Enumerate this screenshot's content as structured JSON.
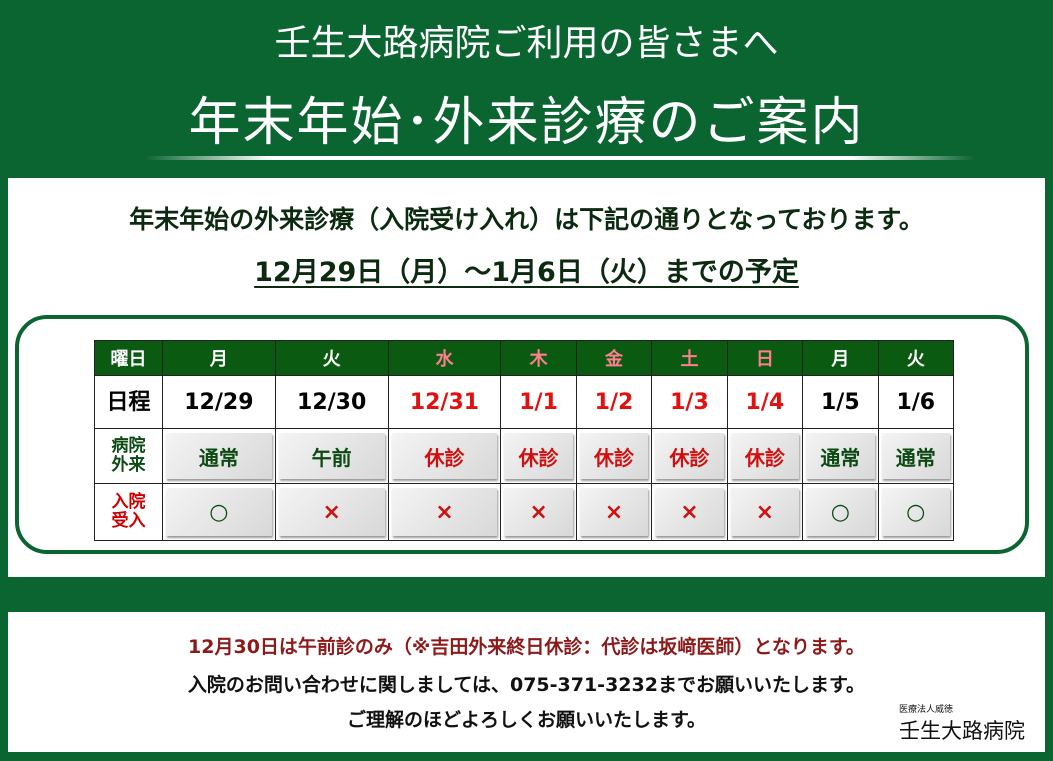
{
  "header": {
    "subtitle": "壬生大路病院ご利用の皆さまへ",
    "title": "年末年始･外来診療のご案内"
  },
  "intro": {
    "line1": "年末年始の外来診療（入院受け入れ）は下記の通りとなっております。",
    "line2": "12月29日（月）～1月6日（火）までの予定"
  },
  "table": {
    "row_labels": {
      "weekday": "曜日",
      "date": "日程",
      "outpatient": "病院外来",
      "admission": "入院受入"
    },
    "columns": [
      {
        "weekday": "月",
        "date": "12/29",
        "outpatient": "通常",
        "admission": "○",
        "holiday": false
      },
      {
        "weekday": "火",
        "date": "12/30",
        "outpatient": "午前",
        "admission": "×",
        "holiday": false
      },
      {
        "weekday": "水",
        "date": "12/31",
        "outpatient": "休診",
        "admission": "×",
        "holiday": true
      },
      {
        "weekday": "木",
        "date": "1/1",
        "outpatient": "休診",
        "admission": "×",
        "holiday": true
      },
      {
        "weekday": "金",
        "date": "1/2",
        "outpatient": "休診",
        "admission": "×",
        "holiday": true
      },
      {
        "weekday": "土",
        "date": "1/3",
        "outpatient": "休診",
        "admission": "×",
        "holiday": true
      },
      {
        "weekday": "日",
        "date": "1/4",
        "outpatient": "休診",
        "admission": "×",
        "holiday": true
      },
      {
        "weekday": "月",
        "date": "1/5",
        "outpatient": "通常",
        "admission": "○",
        "holiday": false
      },
      {
        "weekday": "火",
        "date": "1/6",
        "outpatient": "通常",
        "admission": "○",
        "holiday": false
      }
    ]
  },
  "notes": {
    "line1": "12月30日は午前診のみ（※吉田外来終日休診：代診は坂﨑医師）となります。",
    "line2": "入院のお問い合わせに関しましては、075-371-3232までお願いいたします。",
    "line3": "ご理解のほどよろしくお願いいたします。"
  },
  "logo": {
    "corp": "医療法人威徳",
    "name": "壬生大路病院"
  },
  "colors": {
    "background": "#0b6531",
    "holiday": "#e31010",
    "open": "#0b4a12"
  }
}
